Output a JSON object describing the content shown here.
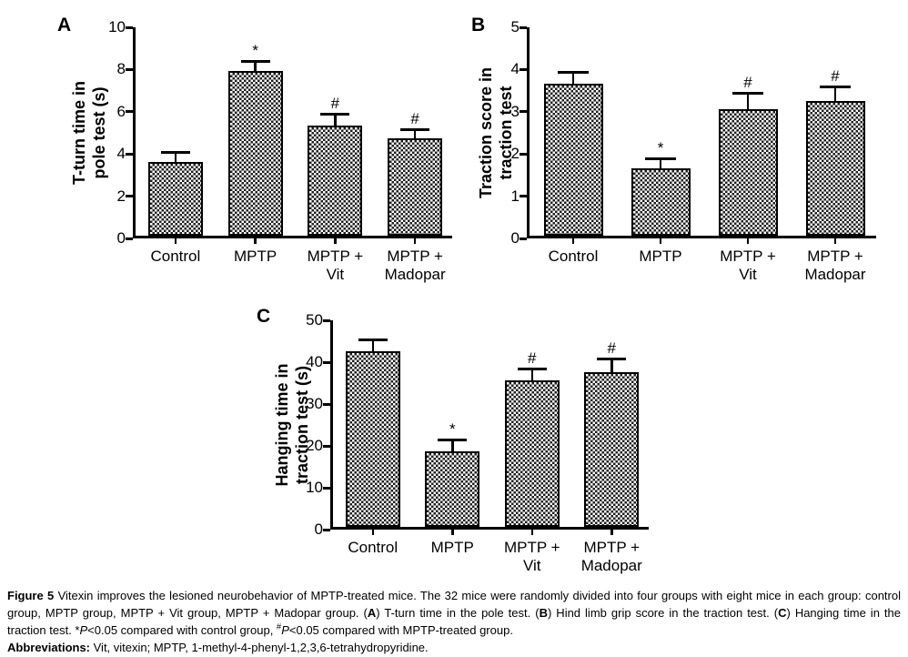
{
  "figure_label": "Figure 5",
  "chart_data": [
    {
      "type": "bar",
      "panel": "A",
      "ylabel": "T-turn time in pole test (s)",
      "ylabel_lines": [
        "T-turn time in",
        "pole test (s)"
      ],
      "ylim": [
        0,
        10
      ],
      "yticks": [
        0,
        2,
        4,
        6,
        8,
        10
      ],
      "categories": [
        "Control",
        "MPTP",
        "MPTP + Vit",
        "MPTP + Madopar"
      ],
      "category_lines": [
        [
          "Control"
        ],
        [
          "MPTP"
        ],
        [
          "MPTP +",
          "Vit"
        ],
        [
          "MPTP +",
          "Madopar"
        ]
      ],
      "values": [
        3.5,
        7.8,
        5.2,
        4.6
      ],
      "errors": [
        0.5,
        0.5,
        0.6,
        0.5
      ],
      "sig_markers": [
        "",
        "*",
        "#",
        "#"
      ],
      "bar_pattern": "checkerboard",
      "bar_color": "#1f1f1f",
      "grid": false,
      "legend": "none"
    },
    {
      "type": "bar",
      "panel": "B",
      "ylabel": "Traction score in traction test",
      "ylabel_lines": [
        "Traction score in",
        "traction test"
      ],
      "ylim": [
        0,
        5
      ],
      "yticks": [
        0,
        1,
        2,
        3,
        4,
        5
      ],
      "categories": [
        "Control",
        "MPTP",
        "MPTP + Vit",
        "MPTP + Madopar"
      ],
      "category_lines": [
        [
          "Control"
        ],
        [
          "MPTP"
        ],
        [
          "MPTP +",
          "Vit"
        ],
        [
          "MPTP +",
          "Madopar"
        ]
      ],
      "values": [
        3.6,
        1.6,
        3.0,
        3.2
      ],
      "errors": [
        0.3,
        0.25,
        0.4,
        0.35
      ],
      "sig_markers": [
        "",
        "*",
        "#",
        "#"
      ],
      "bar_pattern": "checkerboard",
      "bar_color": "#1f1f1f",
      "grid": false,
      "legend": "none"
    },
    {
      "type": "bar",
      "panel": "C",
      "ylabel": "Hanging time in traction test (s)",
      "ylabel_lines": [
        "Hanging time in",
        "traction test (s)"
      ],
      "ylim": [
        0,
        50
      ],
      "yticks": [
        0,
        10,
        20,
        30,
        40,
        50
      ],
      "categories": [
        "Control",
        "MPTP",
        "MPTP + Vit",
        "MPTP + Madopar"
      ],
      "category_lines": [
        [
          "Control"
        ],
        [
          "MPTP"
        ],
        [
          "MPTP +",
          "Vit"
        ],
        [
          "MPTP +",
          "Madopar"
        ]
      ],
      "values": [
        42,
        18,
        35,
        37
      ],
      "errors": [
        3,
        3,
        3,
        3.5
      ],
      "sig_markers": [
        "",
        "*",
        "#",
        "#"
      ],
      "bar_pattern": "checkerboard",
      "bar_color": "#1f1f1f",
      "grid": false,
      "legend": "none"
    }
  ],
  "caption": {
    "paragraphs": [
      {
        "segments": [
          {
            "text": "Figure 5 ",
            "style": "bold"
          },
          {
            "text": "Vitexin improves the lesioned neurobehavior of MPTP-treated mice. The 32 mice were randomly divided into four groups with eight mice in each group: control group, MPTP group, MPTP + Vit group, MPTP + Madopar group. (",
            "style": "normal"
          },
          {
            "text": "A",
            "style": "bold"
          },
          {
            "text": ") T-turn time in the pole test. (",
            "style": "normal"
          },
          {
            "text": "B",
            "style": "bold"
          },
          {
            "text": ") Hind limb grip score in the traction test. (",
            "style": "normal"
          },
          {
            "text": "C",
            "style": "bold"
          },
          {
            "text": ") Hanging time in the traction test. *",
            "style": "normal"
          },
          {
            "text": "P",
            "style": "italic"
          },
          {
            "text": "<0.05 compared with control group, ",
            "style": "normal"
          },
          {
            "text": "#",
            "style": "super"
          },
          {
            "text": "P",
            "style": "italic"
          },
          {
            "text": "<0.05 compared with MPTP-treated group.",
            "style": "normal"
          }
        ]
      },
      {
        "segments": [
          {
            "text": "Abbreviations: ",
            "style": "bold"
          },
          {
            "text": "Vit, vitexin; MPTP, 1-methyl-4-phenyl-1,2,3,6-tetrahydropyridine.",
            "style": "normal"
          }
        ]
      }
    ]
  }
}
